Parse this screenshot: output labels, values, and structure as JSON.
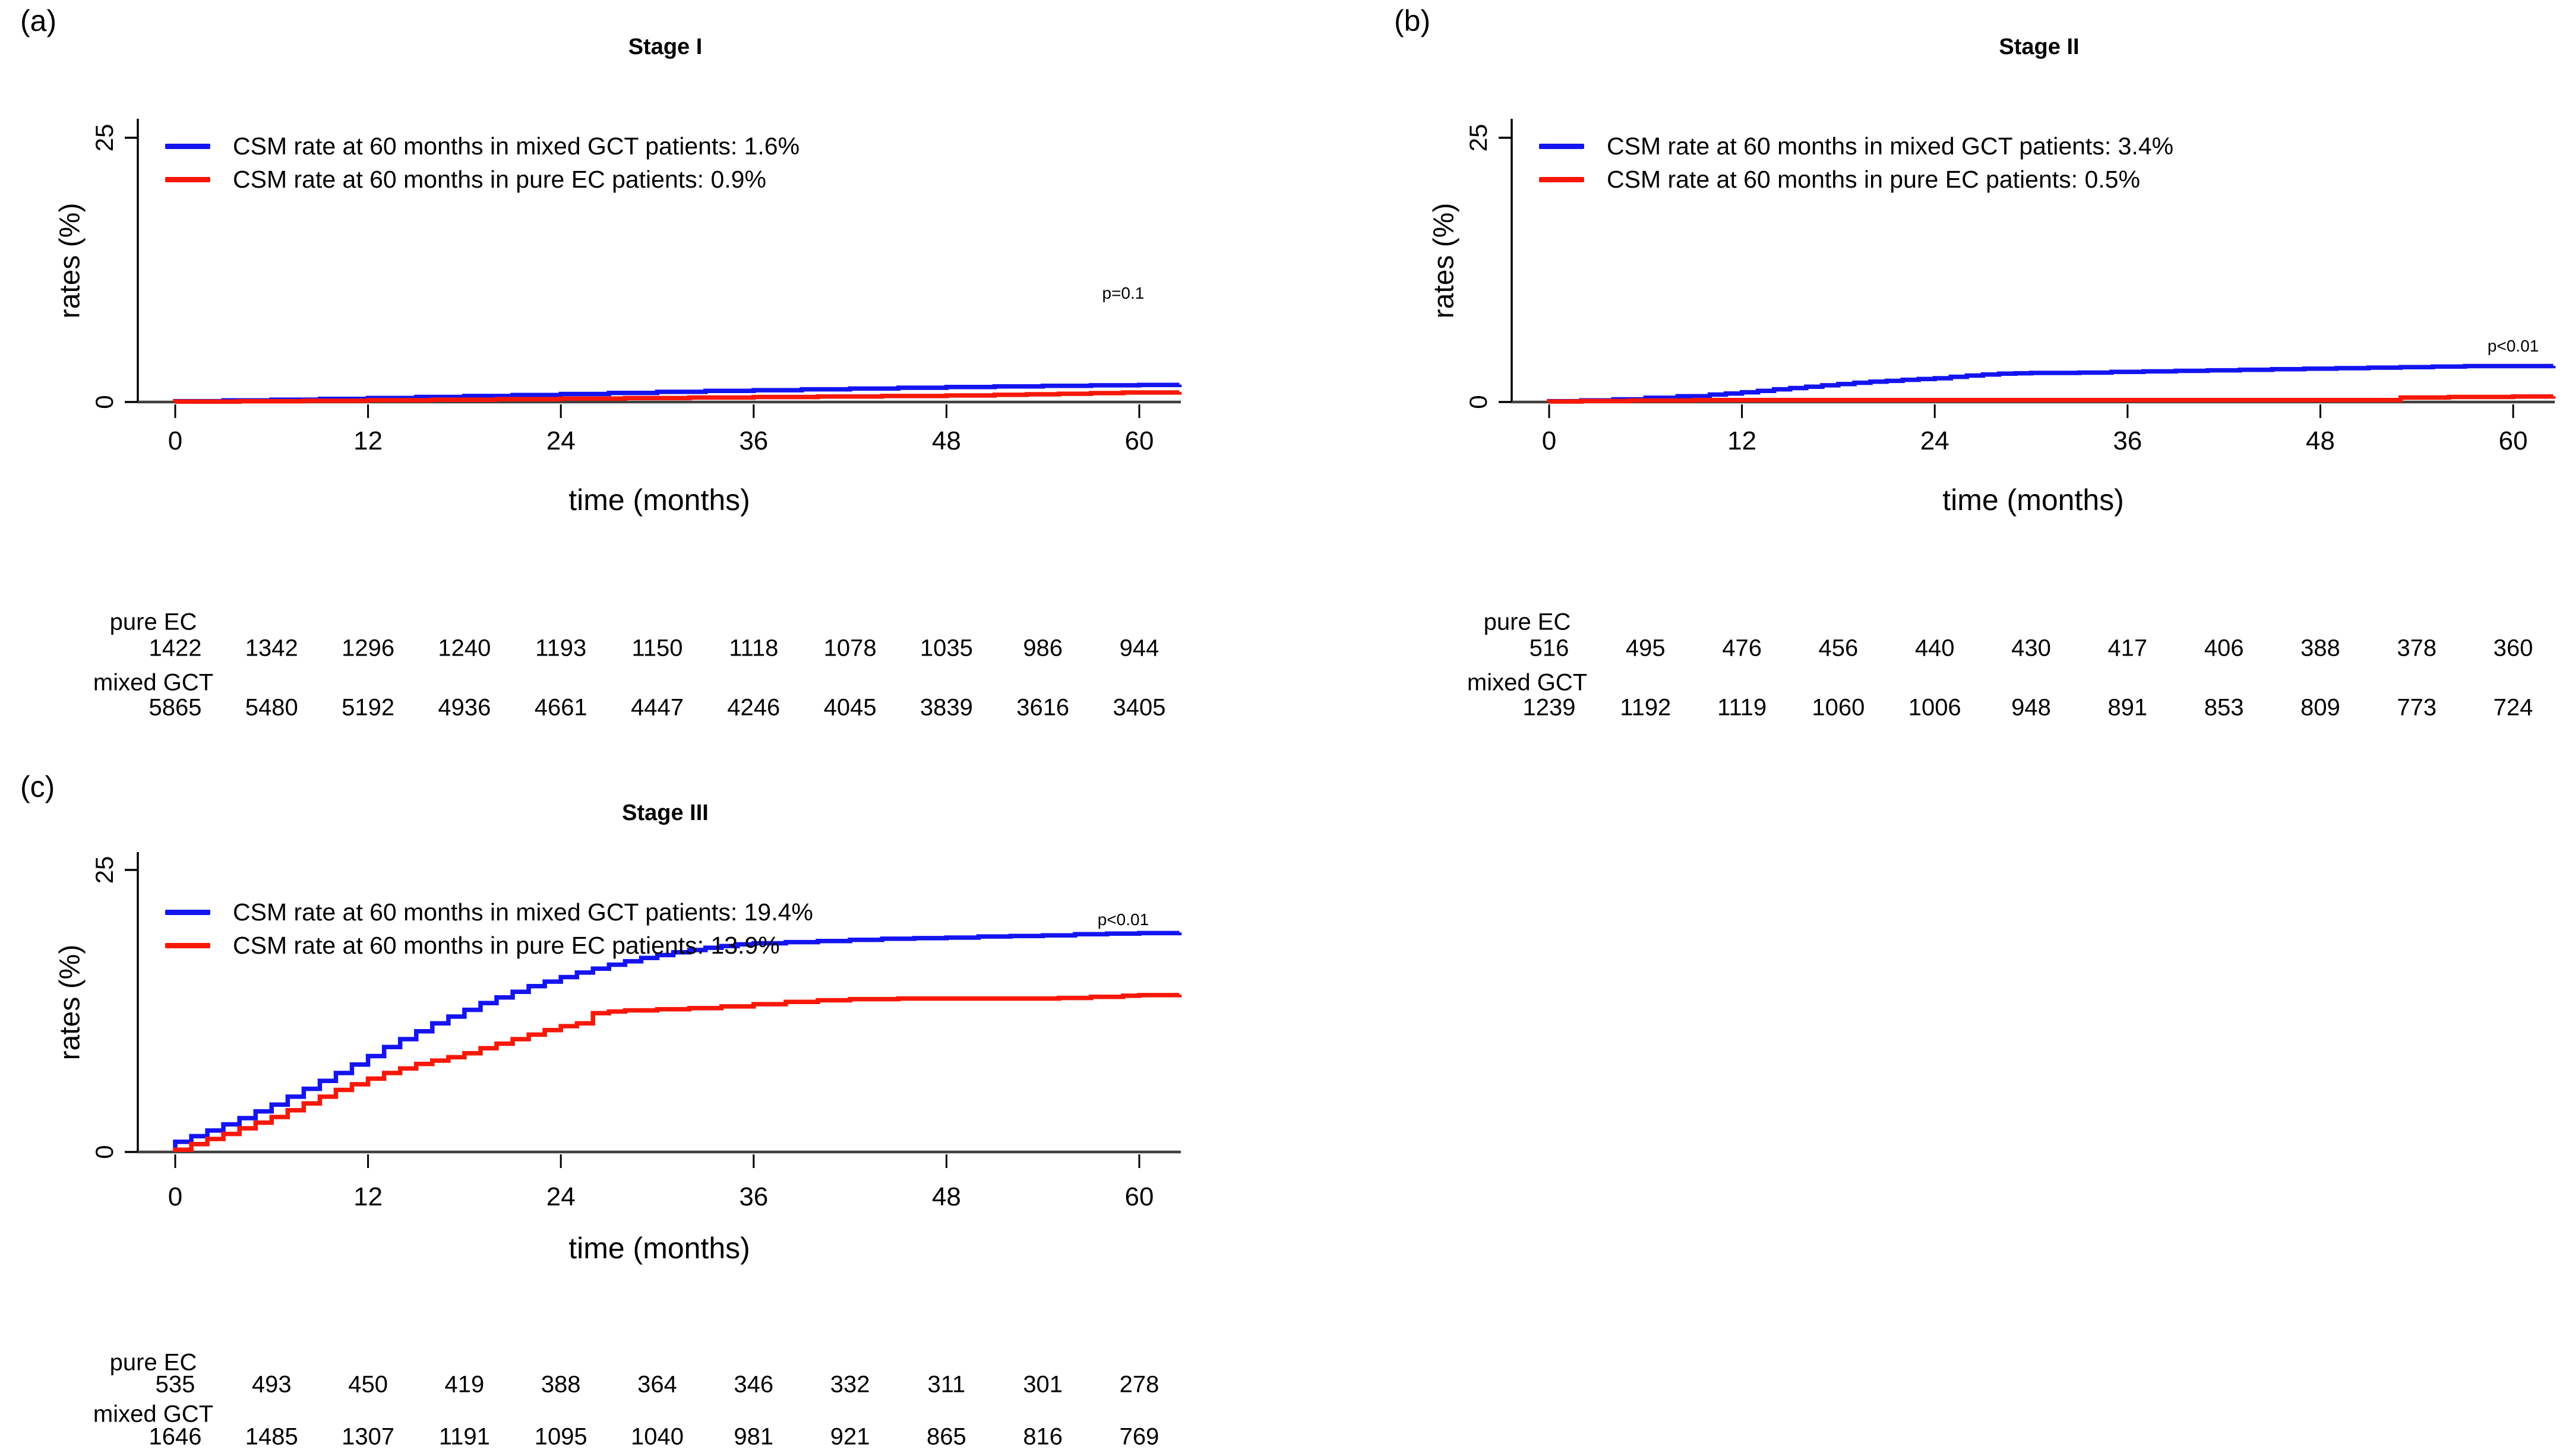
{
  "figure": {
    "background": "#ffffff"
  },
  "colors": {
    "mixed_gct": "#1414f0",
    "pure_ec": "#f71808",
    "axis_zero_line": "#404040",
    "axis": "#000000"
  },
  "chart_data": [
    {
      "type": "line",
      "panel_label": "(a)",
      "title": "Stage I",
      "xlabel": "time (months)",
      "ylabel": "rates (%)",
      "xticks": [
        0,
        12,
        24,
        36,
        48,
        60
      ],
      "yticks": [
        0,
        25
      ],
      "xlim": [
        0,
        62.5
      ],
      "ylim": [
        0,
        25
      ],
      "p_label": "p=0.1",
      "annotation_pos": {
        "month": 59,
        "pct": 10.3
      },
      "legend": [
        {
          "label": "CSM rate at 60 months in mixed GCT patients: 1.6%",
          "color": "#1414f0"
        },
        {
          "label": "CSM rate at 60 months in pure EC patients: 0.9%",
          "color": "#f71808"
        }
      ],
      "series": [
        {
          "name": "mixed GCT",
          "color": "#1414f0",
          "rate_at_60": 1.6,
          "steps": [
            [
              0,
              0.08
            ],
            [
              3,
              0.15
            ],
            [
              6,
              0.22
            ],
            [
              9,
              0.3
            ],
            [
              12,
              0.38
            ],
            [
              15,
              0.48
            ],
            [
              18,
              0.57
            ],
            [
              21,
              0.66
            ],
            [
              24,
              0.76
            ],
            [
              27,
              0.86
            ],
            [
              30,
              0.96
            ],
            [
              33,
              1.05
            ],
            [
              36,
              1.12
            ],
            [
              39,
              1.2
            ],
            [
              42,
              1.27
            ],
            [
              45,
              1.35
            ],
            [
              48,
              1.42
            ],
            [
              51,
              1.48
            ],
            [
              54,
              1.53
            ],
            [
              57,
              1.58
            ],
            [
              60,
              1.62
            ],
            [
              62.5,
              1.65
            ]
          ]
        },
        {
          "name": "pure EC",
          "color": "#f71808",
          "rate_at_60": 0.9,
          "steps": [
            [
              0,
              0.04
            ],
            [
              4,
              0.08
            ],
            [
              8,
              0.12
            ],
            [
              12,
              0.17
            ],
            [
              16,
              0.22
            ],
            [
              20,
              0.27
            ],
            [
              24,
              0.32
            ],
            [
              28,
              0.37
            ],
            [
              32,
              0.42
            ],
            [
              36,
              0.47
            ],
            [
              40,
              0.52
            ],
            [
              44,
              0.57
            ],
            [
              48,
              0.62
            ],
            [
              51,
              0.68
            ],
            [
              53,
              0.73
            ],
            [
              55,
              0.78
            ],
            [
              57,
              0.84
            ],
            [
              59,
              0.9
            ],
            [
              62.5,
              0.95
            ]
          ]
        }
      ],
      "risk_table": {
        "months": [
          0,
          6,
          12,
          18,
          24,
          30,
          36,
          42,
          48,
          54,
          60
        ],
        "rows": [
          {
            "label": "pure EC",
            "counts": [
              1422,
              1342,
              1296,
              1240,
              1193,
              1150,
              1118,
              1078,
              1035,
              986,
              944
            ]
          },
          {
            "label": "mixed GCT",
            "counts": [
              5865,
              5480,
              5192,
              4936,
              4661,
              4447,
              4246,
              4045,
              3839,
              3616,
              3405
            ]
          }
        ]
      }
    },
    {
      "type": "line",
      "panel_label": "(b)",
      "title": "Stage II",
      "xlabel": "time (months)",
      "ylabel": "rates (%)",
      "xticks": [
        0,
        12,
        24,
        36,
        48,
        60
      ],
      "yticks": [
        0,
        25
      ],
      "xlim": [
        0,
        62.5
      ],
      "ylim": [
        0,
        25
      ],
      "p_label": "p<0.01",
      "annotation_pos": {
        "month": 60,
        "pct": 5.3
      },
      "legend": [
        {
          "label": "CSM rate at 60 months in mixed GCT patients: 3.4%",
          "color": "#1414f0"
        },
        {
          "label": "CSM rate at 60 months in pure EC patients: 0.5%",
          "color": "#f71808"
        }
      ],
      "series": [
        {
          "name": "mixed GCT",
          "color": "#1414f0",
          "rate_at_60": 3.4,
          "steps": [
            [
              0,
              0.08
            ],
            [
              2,
              0.16
            ],
            [
              4,
              0.25
            ],
            [
              6,
              0.4
            ],
            [
              8,
              0.55
            ],
            [
              10,
              0.7
            ],
            [
              11,
              0.8
            ],
            [
              12,
              0.92
            ],
            [
              13,
              1.05
            ],
            [
              14,
              1.2
            ],
            [
              15,
              1.32
            ],
            [
              16,
              1.45
            ],
            [
              17,
              1.58
            ],
            [
              18,
              1.7
            ],
            [
              19,
              1.82
            ],
            [
              20,
              1.92
            ],
            [
              21,
              2.0
            ],
            [
              22,
              2.1
            ],
            [
              23,
              2.18
            ],
            [
              24,
              2.25
            ],
            [
              25,
              2.38
            ],
            [
              26,
              2.5
            ],
            [
              27,
              2.6
            ],
            [
              28,
              2.68
            ],
            [
              29,
              2.72
            ],
            [
              30,
              2.75
            ],
            [
              33,
              2.78
            ],
            [
              35,
              2.85
            ],
            [
              37,
              2.9
            ],
            [
              39,
              2.95
            ],
            [
              41,
              3.0
            ],
            [
              43,
              3.05
            ],
            [
              45,
              3.1
            ],
            [
              47,
              3.15
            ],
            [
              49,
              3.2
            ],
            [
              51,
              3.25
            ],
            [
              53,
              3.3
            ],
            [
              55,
              3.35
            ],
            [
              57,
              3.4
            ],
            [
              62.5,
              3.42
            ]
          ]
        },
        {
          "name": "pure EC",
          "color": "#f71808",
          "rate_at_60": 0.5,
          "steps": [
            [
              0,
              0.05
            ],
            [
              2,
              0.1
            ],
            [
              5,
              0.14
            ],
            [
              9,
              0.18
            ],
            [
              52,
              0.18
            ],
            [
              53,
              0.42
            ],
            [
              56,
              0.48
            ],
            [
              60,
              0.52
            ],
            [
              62.5,
              0.55
            ]
          ]
        }
      ],
      "risk_table": {
        "months": [
          0,
          6,
          12,
          18,
          24,
          30,
          36,
          42,
          48,
          54,
          60
        ],
        "rows": [
          {
            "label": "pure EC",
            "counts": [
              516,
              495,
              476,
              456,
              440,
              430,
              417,
              406,
              388,
              378,
              360
            ]
          },
          {
            "label": "mixed GCT",
            "counts": [
              1239,
              1192,
              1119,
              1060,
              1006,
              948,
              891,
              853,
              809,
              773,
              724
            ]
          }
        ]
      }
    },
    {
      "type": "line",
      "panel_label": "(c)",
      "title": "Stage III",
      "xlabel": "time (months)",
      "ylabel": "rates (%)",
      "xticks": [
        0,
        12,
        24,
        36,
        48,
        60
      ],
      "yticks": [
        0,
        25
      ],
      "xlim": [
        0,
        62.5
      ],
      "ylim": [
        0,
        25
      ],
      "p_label": "p<0.01",
      "annotation_pos": {
        "month": 59,
        "pct": 20.6
      },
      "legend": [
        {
          "label": "CSM rate at 60 months in mixed GCT patients: 19.4%",
          "color": "#1414f0"
        },
        {
          "label": "CSM rate at 60 months in pure EC patients: 13.9%",
          "color": "#f71808"
        }
      ],
      "series": [
        {
          "name": "mixed GCT",
          "color": "#1414f0",
          "rate_at_60": 19.4,
          "steps": [
            [
              0,
              0.9
            ],
            [
              1,
              1.4
            ],
            [
              2,
              1.9
            ],
            [
              3,
              2.45
            ],
            [
              4,
              3.0
            ],
            [
              5,
              3.6
            ],
            [
              6,
              4.2
            ],
            [
              7,
              4.9
            ],
            [
              8,
              5.6
            ],
            [
              9,
              6.3
            ],
            [
              10,
              7.0
            ],
            [
              11,
              7.75
            ],
            [
              12,
              8.5
            ],
            [
              13,
              9.3
            ],
            [
              14,
              10.0
            ],
            [
              15,
              10.7
            ],
            [
              16,
              11.4
            ],
            [
              17,
              12.0
            ],
            [
              18,
              12.6
            ],
            [
              19,
              13.2
            ],
            [
              20,
              13.7
            ],
            [
              21,
              14.2
            ],
            [
              22,
              14.7
            ],
            [
              23,
              15.1
            ],
            [
              24,
              15.5
            ],
            [
              25,
              15.9
            ],
            [
              26,
              16.25
            ],
            [
              27,
              16.6
            ],
            [
              28,
              16.9
            ],
            [
              29,
              17.2
            ],
            [
              30,
              17.45
            ],
            [
              31,
              17.7
            ],
            [
              32,
              17.9
            ],
            [
              33,
              18.1
            ],
            [
              34,
              18.25
            ],
            [
              35,
              18.4
            ],
            [
              36,
              18.5
            ],
            [
              38,
              18.6
            ],
            [
              40,
              18.7
            ],
            [
              42,
              18.8
            ],
            [
              44,
              18.9
            ],
            [
              46,
              18.95
            ],
            [
              48,
              19.0
            ],
            [
              50,
              19.1
            ],
            [
              52,
              19.15
            ],
            [
              54,
              19.2
            ],
            [
              56,
              19.3
            ],
            [
              58,
              19.35
            ],
            [
              60,
              19.4
            ],
            [
              62.5,
              19.45
            ]
          ]
        },
        {
          "name": "pure EC",
          "color": "#f71808",
          "rate_at_60": 13.9,
          "steps": [
            [
              0,
              0.2
            ],
            [
              1,
              0.7
            ],
            [
              2,
              1.15
            ],
            [
              3,
              1.6
            ],
            [
              4,
              2.1
            ],
            [
              5,
              2.6
            ],
            [
              6,
              3.1
            ],
            [
              7,
              3.7
            ],
            [
              8,
              4.3
            ],
            [
              9,
              4.9
            ],
            [
              10,
              5.5
            ],
            [
              11,
              6.0
            ],
            [
              12,
              6.5
            ],
            [
              13,
              7.0
            ],
            [
              14,
              7.4
            ],
            [
              15,
              7.8
            ],
            [
              16,
              8.1
            ],
            [
              17,
              8.4
            ],
            [
              18,
              8.75
            ],
            [
              19,
              9.2
            ],
            [
              20,
              9.6
            ],
            [
              21,
              10.0
            ],
            [
              22,
              10.4
            ],
            [
              23,
              10.8
            ],
            [
              24,
              11.15
            ],
            [
              25,
              11.4
            ],
            [
              26,
              12.3
            ],
            [
              27,
              12.45
            ],
            [
              28,
              12.55
            ],
            [
              30,
              12.65
            ],
            [
              32,
              12.75
            ],
            [
              34,
              12.9
            ],
            [
              36,
              13.1
            ],
            [
              38,
              13.3
            ],
            [
              40,
              13.45
            ],
            [
              42,
              13.55
            ],
            [
              45,
              13.6
            ],
            [
              50,
              13.6
            ],
            [
              55,
              13.65
            ],
            [
              57,
              13.75
            ],
            [
              59,
              13.85
            ],
            [
              60,
              13.9
            ],
            [
              62.5,
              13.95
            ]
          ]
        }
      ],
      "risk_table": {
        "months": [
          0,
          6,
          12,
          18,
          24,
          30,
          36,
          42,
          48,
          54,
          60
        ],
        "rows": [
          {
            "label": "pure EC",
            "counts": [
              535,
              493,
              450,
              419,
              388,
              364,
              346,
              332,
              311,
              301,
              278
            ]
          },
          {
            "label": "mixed GCT",
            "counts": [
              1646,
              1485,
              1307,
              1191,
              1095,
              1040,
              981,
              921,
              865,
              816,
              769
            ]
          }
        ]
      }
    }
  ]
}
